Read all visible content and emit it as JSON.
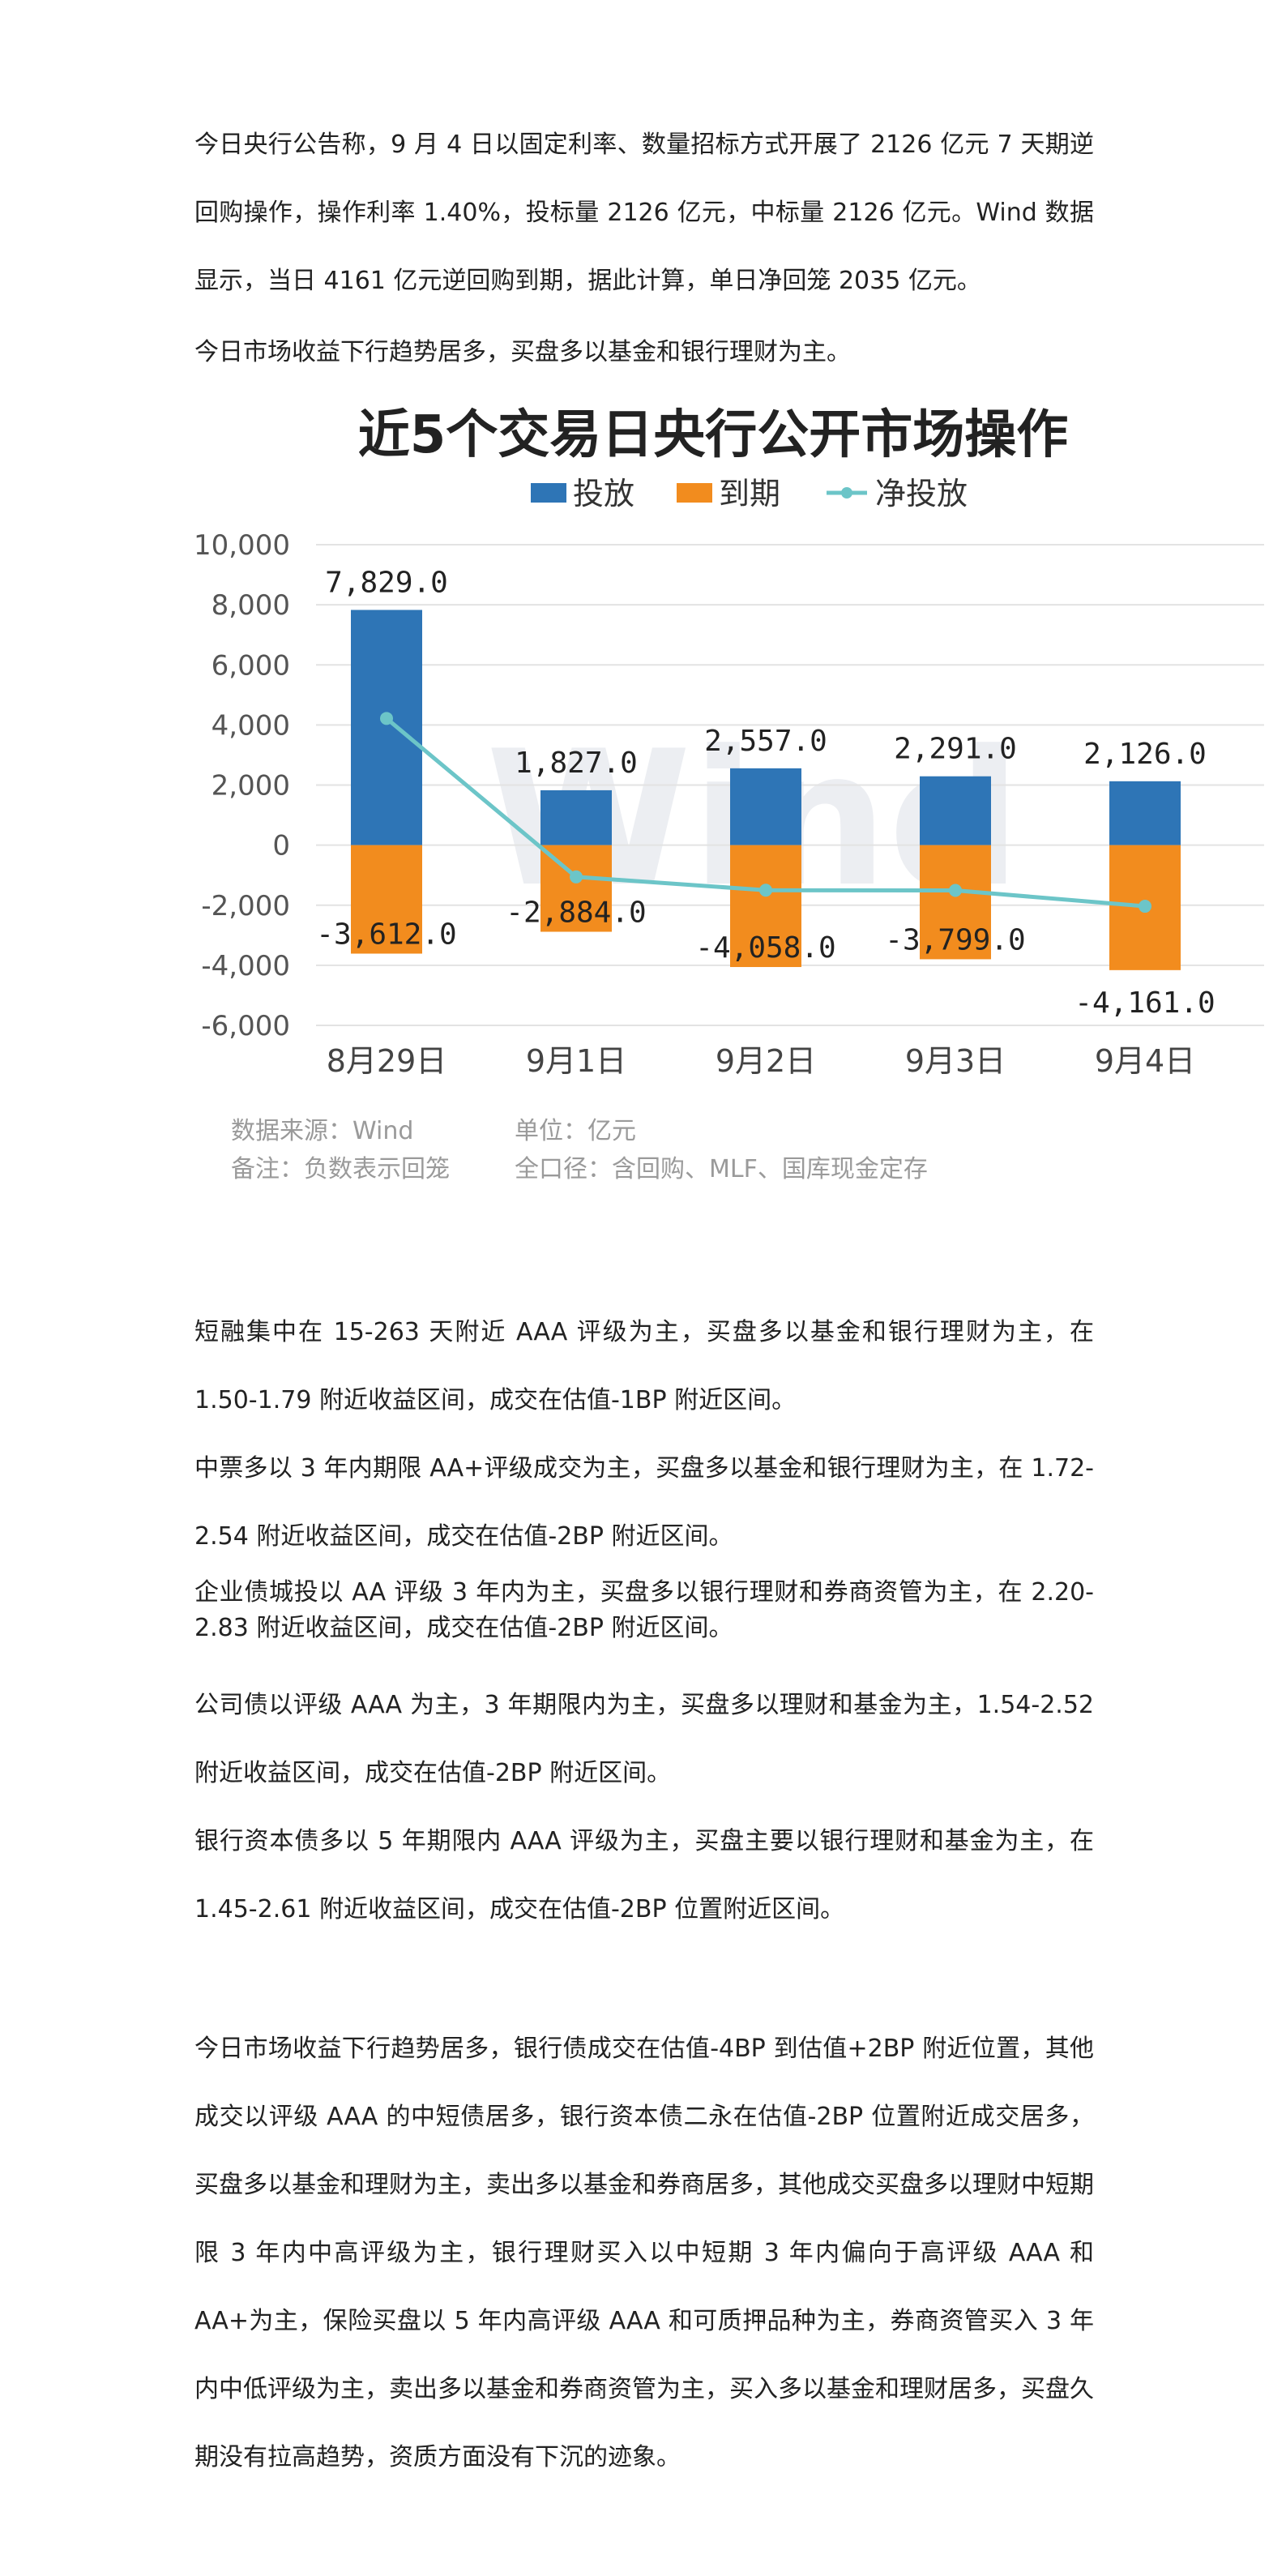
{
  "intro": {
    "p1": "今日央行公告称，9 月 4 日以固定利率、数量招标方式开展了 2126 亿元 7 天期逆回购操作，操作利率 1.40%，投标量 2126 亿元，中标量 2126 亿元。Wind 数据显示，当日 4161 亿元逆回购到期，据此计算，单日净回笼 2035 亿元。",
    "p2": "今日市场收益下行趋势居多，买盘多以基金和银行理财为主。"
  },
  "chart_data": {
    "type": "bar",
    "title": "近5个交易日央行公开市场操作",
    "categories": [
      "8月29日",
      "9月1日",
      "9月2日",
      "9月3日",
      "9月4日"
    ],
    "series": [
      {
        "name": "投放",
        "kind": "bar",
        "color": "#2e75b6",
        "values": [
          7829.0,
          1827.0,
          2557.0,
          2291.0,
          2126.0
        ],
        "labels": [
          "7,829.0",
          "1,827.0",
          "2,557.0",
          "2,291.0",
          "2,126.0"
        ]
      },
      {
        "name": "到期",
        "kind": "bar",
        "color": "#f28c1e",
        "values": [
          -3612.0,
          -2884.0,
          -4058.0,
          -3799.0,
          -4161.0
        ],
        "labels": [
          "-3,612.0",
          "-2,884.0",
          "-4,058.0",
          "-3,799.0",
          "-4,161.0"
        ]
      },
      {
        "name": "净投放",
        "kind": "line",
        "color": "#6cc5c8",
        "values": [
          4217.0,
          -1057.0,
          -1501.0,
          -1508.0,
          -2035.0
        ]
      }
    ],
    "ylim": [
      -6000,
      10000
    ],
    "yticks": [
      "10,000",
      "8,000",
      "6,000",
      "4,000",
      "2,000",
      "0",
      "-2,000",
      "-4,000",
      "-6,000"
    ],
    "ytick_values": [
      10000,
      8000,
      6000,
      4000,
      2000,
      0,
      -2000,
      -4000,
      -6000
    ],
    "legend": "top",
    "grid": true,
    "footnotes": {
      "source": "数据来源：Wind",
      "unit": "单位：亿元",
      "note": "备注：负数表示回笼",
      "scope": "全口径：含回购、MLF、国库现金定存"
    },
    "watermark": "Wind"
  },
  "details": {
    "p1": "短融集中在 15-263 天附近 AAA 评级为主，买盘多以基金和银行理财为主，在 1.50-1.79 附近收益区间，成交在估值-1BP 附近区间。",
    "p2": "中票多以 3 年内期限 AA+评级成交为主，买盘多以基金和银行理财为主，在 1.72-2.54 附近收益区间，成交在估值-2BP 附近区间。",
    "p3": "企业债城投以 AA 评级 3 年内为主，买盘多以银行理财和券商资管为主，在 2.20-2.83 附近收益区间，成交在估值-2BP 附近区间。",
    "p4": "公司债以评级 AAA 为主，3 年期限内为主，买盘多以理财和基金为主，1.54-2.52 附近收益区间，成交在估值-2BP 附近区间。",
    "p5": "银行资本债多以 5 年期限内 AAA 评级为主，买盘主要以银行理财和基金为主，在 1.45-2.61 附近收益区间，成交在估值-2BP 位置附近区间。"
  },
  "summary": {
    "p1": "今日市场收益下行趋势居多，银行债成交在估值-4BP 到估值+2BP 附近位置，其他成交以评级 AAA 的中短债居多，银行资本债二永在估值-2BP 位置附近成交居多，买盘多以基金和理财为主，卖出多以基金和券商居多，其他成交买盘多以理财中短期限 3 年内中高评级为主，银行理财买入以中短期 3 年内偏向于高评级 AAA 和 AA+为主，保险买盘以 5 年内高评级 AAA 和可质押品种为主，券商资管买入 3 年内中低评级为主，卖出多以基金和券商资管为主，买入多以基金和理财居多，买盘久期没有拉高趋势，资质方面没有下沉的迹象。"
  }
}
